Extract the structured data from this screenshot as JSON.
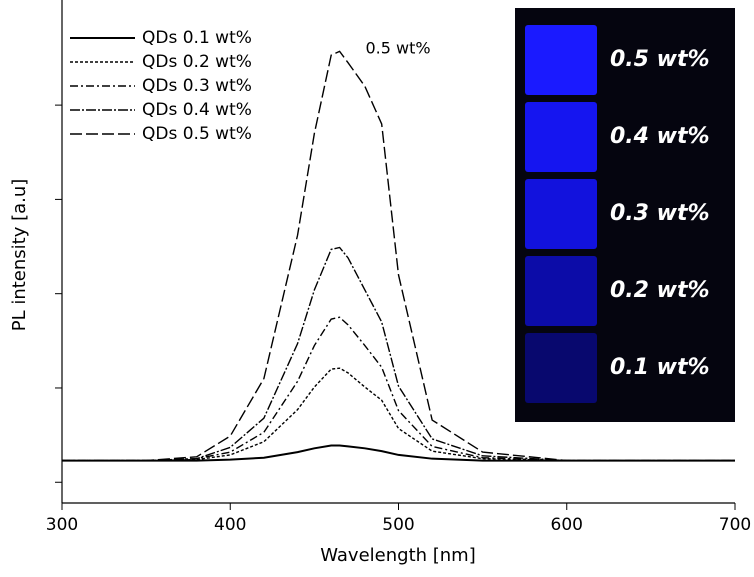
{
  "chart_data": {
    "type": "line",
    "xlabel": "Wavelength [nm]",
    "ylabel": "PL intensity [a.u]",
    "annotation": "0.5 wt%",
    "x": [
      300,
      350,
      380,
      400,
      420,
      440,
      450,
      460,
      465,
      470,
      480,
      490,
      500,
      520,
      550,
      600,
      700
    ],
    "series": [
      {
        "name": "QDs 0.1 wt%",
        "color": "#000000",
        "dash": "none",
        "values": [
          0.23,
          0.23,
          0.23,
          0.24,
          0.26,
          0.32,
          0.36,
          0.39,
          0.39,
          0.38,
          0.36,
          0.33,
          0.29,
          0.25,
          0.23,
          0.23,
          0.23
        ]
      },
      {
        "name": "QDs 0.2 wt%",
        "color": "#000000",
        "dash": "3,2",
        "values": [
          0.23,
          0.23,
          0.24,
          0.29,
          0.43,
          0.77,
          1.01,
          1.2,
          1.21,
          1.16,
          1.01,
          0.87,
          0.57,
          0.33,
          0.25,
          0.23,
          0.23
        ]
      },
      {
        "name": "QDs 0.3 wt%",
        "color": "#000000",
        "dash": "8,3,2,3",
        "values": [
          0.23,
          0.23,
          0.25,
          0.32,
          0.53,
          1.07,
          1.45,
          1.73,
          1.75,
          1.67,
          1.45,
          1.22,
          0.76,
          0.38,
          0.26,
          0.23,
          0.23
        ]
      },
      {
        "name": "QDs 0.4 wt%",
        "color": "#000000",
        "dash": "10,2,2,2",
        "values": [
          0.23,
          0.23,
          0.25,
          0.37,
          0.68,
          1.47,
          2.04,
          2.47,
          2.49,
          2.38,
          2.04,
          1.7,
          1.02,
          0.46,
          0.28,
          0.23,
          0.23
        ]
      },
      {
        "name": "QDs 0.5 wt%",
        "color": "#000000",
        "dash": "12,4",
        "values": [
          0.23,
          0.23,
          0.27,
          0.49,
          1.1,
          2.62,
          3.7,
          4.53,
          4.57,
          4.45,
          4.2,
          3.8,
          2.2,
          0.66,
          0.32,
          0.23,
          0.23
        ]
      }
    ],
    "xlim": [
      300,
      700
    ],
    "xticks": [
      300,
      400,
      500,
      600,
      700
    ],
    "ylim": [
      -0.22,
      5.03
    ],
    "yticks": [
      0,
      1,
      2,
      3,
      4
    ],
    "inset_labels": [
      "0.5 wt%",
      "0.4 wt%",
      "0.3 wt%",
      "0.2 wt%",
      "0.1 wt%"
    ]
  }
}
